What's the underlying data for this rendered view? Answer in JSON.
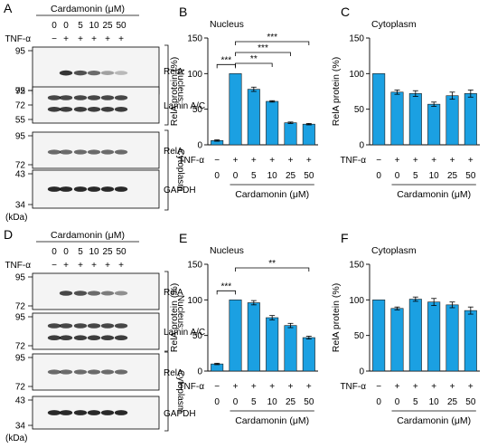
{
  "blot_panels": [
    {
      "letter": "A",
      "treatment_title": "Cardamonin (μM)",
      "doses": [
        "0",
        "0",
        "5",
        "10",
        "25",
        "50"
      ],
      "tnf_label": "TNF-α",
      "tnf": [
        "−",
        "+",
        "+",
        "+",
        "+",
        "+"
      ],
      "kda_label": "(kDa)",
      "blots": [
        {
          "label": "RelA",
          "markers": [
            "95",
            "72"
          ],
          "bands": [
            {
              "row": 0.55,
              "intensity": [
                0.0,
                0.85,
                0.7,
                0.55,
                0.25,
                0.12
              ]
            }
          ]
        },
        {
          "label": "Lamin A/C",
          "markers": [
            "95",
            "72",
            "55"
          ],
          "bands": [
            {
              "row": 0.3,
              "intensity": [
                0.75,
                0.75,
                0.75,
                0.75,
                0.75,
                0.75
              ]
            },
            {
              "row": 0.62,
              "intensity": [
                0.8,
                0.8,
                0.8,
                0.8,
                0.8,
                0.8
              ]
            }
          ]
        },
        {
          "label": "RelA",
          "markers": [
            "95",
            "72"
          ],
          "bands": [
            {
              "row": 0.55,
              "intensity": [
                0.55,
                0.55,
                0.55,
                0.55,
                0.55,
                0.55
              ]
            }
          ]
        },
        {
          "label": "GAPDH",
          "markers": [
            "43",
            "34"
          ],
          "bands": [
            {
              "row": 0.5,
              "intensity": [
                0.9,
                0.9,
                0.9,
                0.9,
                0.9,
                0.9
              ]
            }
          ]
        }
      ],
      "brackets": [
        "Nucleus",
        "Cytoplasm"
      ]
    },
    {
      "letter": "D",
      "treatment_title": "Cardamonin (μM)",
      "doses": [
        "0",
        "0",
        "5",
        "10",
        "25",
        "50"
      ],
      "tnf_label": "TNF-α",
      "tnf": [
        "−",
        "+",
        "+",
        "+",
        "+",
        "+"
      ],
      "kda_label": "(kDa)",
      "blots": [
        {
          "label": "RelA",
          "markers": [
            "95",
            "72"
          ],
          "bands": [
            {
              "row": 0.55,
              "intensity": [
                0.0,
                0.75,
                0.7,
                0.55,
                0.45,
                0.35
              ]
            }
          ]
        },
        {
          "label": "Lamin A/C",
          "markers": [
            "95",
            "72"
          ],
          "bands": [
            {
              "row": 0.35,
              "intensity": [
                0.75,
                0.75,
                0.75,
                0.75,
                0.75,
                0.75
              ]
            },
            {
              "row": 0.68,
              "intensity": [
                0.8,
                0.8,
                0.8,
                0.8,
                0.8,
                0.8
              ]
            }
          ]
        },
        {
          "label": "RelA",
          "markers": [
            "95",
            "72"
          ],
          "bands": [
            {
              "row": 0.5,
              "intensity": [
                0.55,
                0.55,
                0.55,
                0.55,
                0.55,
                0.55
              ]
            }
          ]
        },
        {
          "label": "GAPDH",
          "markers": [
            "43",
            "34"
          ],
          "bands": [
            {
              "row": 0.5,
              "intensity": [
                0.9,
                0.9,
                0.9,
                0.9,
                0.9,
                0.9
              ]
            }
          ]
        }
      ],
      "brackets": [
        "Nucleus",
        "Cytoplasm"
      ]
    }
  ],
  "chart_data": [
    {
      "letter": "B",
      "type": "bar",
      "title": "Nucleus",
      "ylabel": "RelA protein (%)",
      "ylim": [
        0,
        150
      ],
      "yticks": [
        0,
        50,
        100,
        150
      ],
      "tnf_label": "TNF-α",
      "tnf": [
        "−",
        "+",
        "+",
        "+",
        "+",
        "+"
      ],
      "categories": [
        "0",
        "0",
        "5",
        "10",
        "25",
        "50"
      ],
      "xlabel": "Cardamonin (μM)",
      "values": [
        6,
        100,
        78,
        61,
        31,
        29
      ],
      "errors": [
        1,
        0,
        3,
        1,
        1,
        1
      ],
      "color": "#1ba0e2",
      "significance": [
        {
          "from": 0,
          "to": 1,
          "label": "***"
        },
        {
          "from": 1,
          "to": 5,
          "label": "***"
        },
        {
          "from": 1,
          "to": 4,
          "label": "***"
        },
        {
          "from": 1,
          "to": 3,
          "label": "**"
        }
      ]
    },
    {
      "letter": "C",
      "type": "bar",
      "title": "Cytoplasm",
      "ylabel": "RelA protein (%)",
      "ylim": [
        0,
        150
      ],
      "yticks": [
        0,
        50,
        100,
        150
      ],
      "tnf_label": "TNF-α",
      "tnf": [
        "−",
        "+",
        "+",
        "+",
        "+",
        "+"
      ],
      "categories": [
        "0",
        "0",
        "5",
        "10",
        "25",
        "50"
      ],
      "xlabel": "Cardamonin (μM)",
      "values": [
        100,
        74,
        72,
        57,
        69,
        72
      ],
      "errors": [
        0,
        3,
        4,
        3,
        5,
        5
      ],
      "color": "#1ba0e2",
      "significance": []
    },
    {
      "letter": "E",
      "type": "bar",
      "title": "Nucleus",
      "ylabel": "RelA protein (%)",
      "ylim": [
        0,
        150
      ],
      "yticks": [
        0,
        50,
        100,
        150
      ],
      "tnf_label": "TNF-α",
      "tnf": [
        "−",
        "+",
        "+",
        "+",
        "+",
        "+"
      ],
      "categories": [
        "0",
        "0",
        "5",
        "10",
        "25",
        "50"
      ],
      "xlabel": "Cardamonin (μM)",
      "values": [
        10,
        100,
        96,
        75,
        64,
        47
      ],
      "errors": [
        1,
        0,
        3,
        3,
        3,
        2
      ],
      "color": "#1ba0e2",
      "significance": [
        {
          "from": 0,
          "to": 1,
          "label": "***"
        },
        {
          "from": 1,
          "to": 5,
          "label": "**"
        }
      ]
    },
    {
      "letter": "F",
      "type": "bar",
      "title": "Cytoplasm",
      "ylabel": "RelA protein (%)",
      "ylim": [
        0,
        150
      ],
      "yticks": [
        0,
        50,
        100,
        150
      ],
      "tnf_label": "TNF-α",
      "tnf": [
        "−",
        "+",
        "+",
        "+",
        "+",
        "+"
      ],
      "categories": [
        "0",
        "0",
        "5",
        "10",
        "25",
        "50"
      ],
      "xlabel": "Cardamonin (μM)",
      "values": [
        100,
        88,
        101,
        97,
        93,
        85
      ],
      "errors": [
        0,
        2,
        3,
        5,
        4,
        5
      ],
      "color": "#1ba0e2",
      "significance": []
    }
  ]
}
